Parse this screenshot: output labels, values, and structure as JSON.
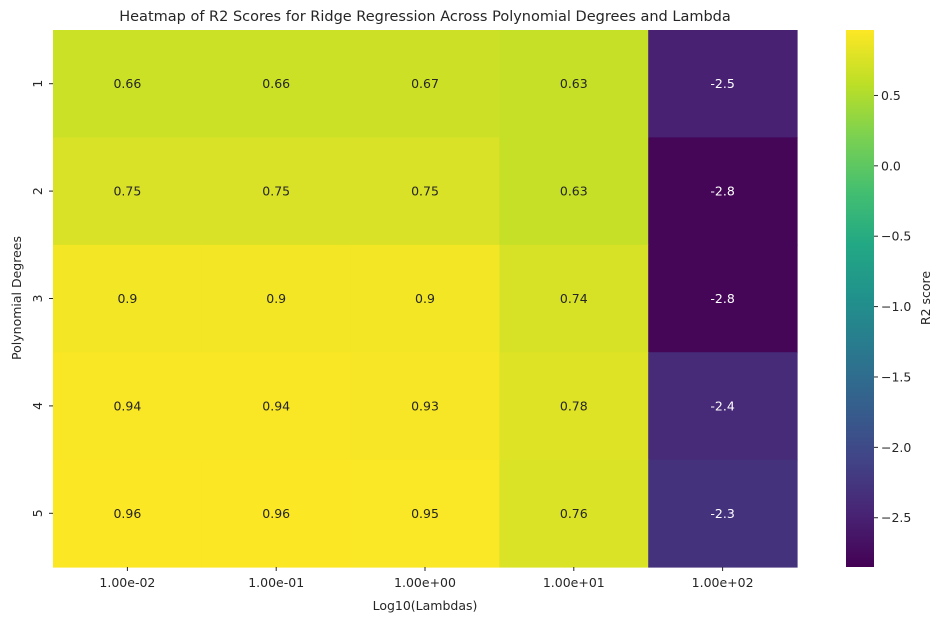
{
  "chart_data": {
    "type": "heatmap",
    "title": "Heatmap of R2 Scores for Ridge Regression Across Polynomial Degrees and Lambda",
    "xlabel": "Log10(Lambdas)",
    "ylabel": "Polynomial Degrees",
    "x_categories": [
      "1.00e-02",
      "1.00e-01",
      "1.00e+00",
      "1.00e+01",
      "1.00e+02"
    ],
    "y_categories": [
      "1",
      "2",
      "3",
      "4",
      "5"
    ],
    "values": [
      [
        0.66,
        0.66,
        0.67,
        0.63,
        -2.5
      ],
      [
        0.75,
        0.75,
        0.75,
        0.63,
        -2.8
      ],
      [
        0.9,
        0.9,
        0.9,
        0.74,
        -2.8
      ],
      [
        0.94,
        0.94,
        0.93,
        0.78,
        -2.4
      ],
      [
        0.96,
        0.96,
        0.95,
        0.76,
        -2.3
      ]
    ],
    "cell_labels": [
      [
        "0.66",
        "0.66",
        "0.67",
        "0.63",
        "-2.5"
      ],
      [
        "0.75",
        "0.75",
        "0.75",
        "0.63",
        "-2.8"
      ],
      [
        "0.9",
        "0.9",
        "0.9",
        "0.74",
        "-2.8"
      ],
      [
        "0.94",
        "0.94",
        "0.93",
        "0.78",
        "-2.4"
      ],
      [
        "0.96",
        "0.96",
        "0.95",
        "0.76",
        "-2.3"
      ]
    ],
    "colormap": "viridis",
    "colorbar": {
      "label": "R2 score",
      "range": [
        -2.85,
        0.965
      ],
      "ticks": [
        0.5,
        0.0,
        -0.5,
        -1.0,
        -1.5,
        -2.0,
        -2.5
      ],
      "tick_labels": [
        "0.5",
        "0.0",
        "−0.5",
        "−1.0",
        "−1.5",
        "−2.0",
        "−2.5"
      ]
    },
    "grid": false
  }
}
